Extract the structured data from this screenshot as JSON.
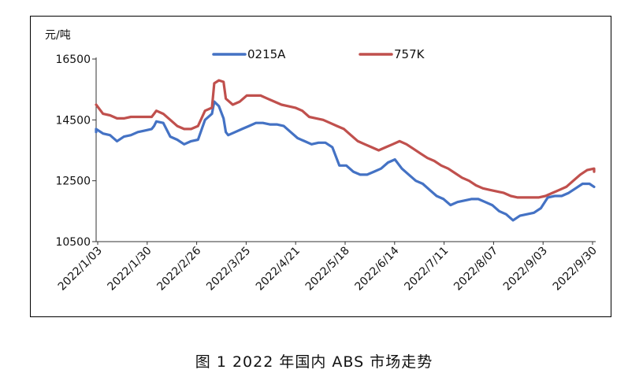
{
  "caption": "图 1  2022 年国内 ABS 市场走势",
  "chart_data": {
    "type": "line",
    "ylabel": "元/吨",
    "ylim": [
      10500,
      16500
    ],
    "yticks": [
      10500,
      12500,
      14500,
      16500
    ],
    "xlabels": [
      "2022/1/03",
      "2022/1/30",
      "2022/2/26",
      "2022/3/25",
      "2022/4/21",
      "2022/5/18",
      "2022/6/14",
      "2022/7/11",
      "2022/8/07",
      "2022/9/03",
      "2022/9/30"
    ],
    "legend_position": "top",
    "grid": false,
    "series": [
      {
        "name": "0215A",
        "color": "#4472C4",
        "points": [
          [
            0,
            14100
          ],
          [
            2,
            14200
          ],
          [
            5,
            14050
          ],
          [
            8,
            14000
          ],
          [
            11,
            13800
          ],
          [
            14,
            13950
          ],
          [
            17,
            14000
          ],
          [
            20,
            14100
          ],
          [
            23,
            14150
          ],
          [
            26,
            14200
          ],
          [
            27,
            14300
          ],
          [
            28,
            14450
          ],
          [
            31,
            14400
          ],
          [
            34,
            13950
          ],
          [
            37,
            13850
          ],
          [
            40,
            13700
          ],
          [
            43,
            13800
          ],
          [
            46,
            13850
          ],
          [
            49,
            14500
          ],
          [
            52,
            14700
          ],
          [
            53,
            15100
          ],
          [
            55,
            14950
          ],
          [
            57,
            14550
          ],
          [
            58,
            14100
          ],
          [
            59,
            14000
          ],
          [
            62,
            14100
          ],
          [
            65,
            14200
          ],
          [
            68,
            14300
          ],
          [
            71,
            14400
          ],
          [
            74,
            14400
          ],
          [
            77,
            14350
          ],
          [
            80,
            14350
          ],
          [
            83,
            14300
          ],
          [
            86,
            14100
          ],
          [
            89,
            13900
          ],
          [
            92,
            13800
          ],
          [
            95,
            13700
          ],
          [
            98,
            13750
          ],
          [
            101,
            13750
          ],
          [
            104,
            13600
          ],
          [
            107,
            13000
          ],
          [
            110,
            13000
          ],
          [
            113,
            12800
          ],
          [
            116,
            12700
          ],
          [
            119,
            12700
          ],
          [
            122,
            12800
          ],
          [
            125,
            12900
          ],
          [
            128,
            13100
          ],
          [
            131,
            13200
          ],
          [
            134,
            12900
          ],
          [
            137,
            12700
          ],
          [
            140,
            12500
          ],
          [
            143,
            12400
          ],
          [
            146,
            12200
          ],
          [
            149,
            12000
          ],
          [
            152,
            11900
          ],
          [
            155,
            11700
          ],
          [
            158,
            11800
          ],
          [
            161,
            11850
          ],
          [
            164,
            11900
          ],
          [
            167,
            11900
          ],
          [
            170,
            11800
          ],
          [
            173,
            11700
          ],
          [
            176,
            11500
          ],
          [
            179,
            11400
          ],
          [
            182,
            11200
          ],
          [
            185,
            11350
          ],
          [
            188,
            11400
          ],
          [
            191,
            11450
          ],
          [
            194,
            11600
          ],
          [
            197,
            11950
          ],
          [
            200,
            12000
          ],
          [
            203,
            12000
          ],
          [
            206,
            12100
          ],
          [
            209,
            12250
          ],
          [
            212,
            12400
          ],
          [
            215,
            12400
          ],
          [
            218,
            12300
          ]
        ]
      },
      {
        "name": "757K",
        "color": "#C0504D",
        "points": [
          [
            0,
            15000
          ],
          [
            2,
            15000
          ],
          [
            5,
            14700
          ],
          [
            8,
            14650
          ],
          [
            11,
            14550
          ],
          [
            14,
            14550
          ],
          [
            17,
            14600
          ],
          [
            20,
            14600
          ],
          [
            23,
            14600
          ],
          [
            26,
            14600
          ],
          [
            27,
            14700
          ],
          [
            28,
            14800
          ],
          [
            31,
            14700
          ],
          [
            34,
            14500
          ],
          [
            37,
            14300
          ],
          [
            40,
            14200
          ],
          [
            43,
            14200
          ],
          [
            46,
            14300
          ],
          [
            49,
            14800
          ],
          [
            52,
            14900
          ],
          [
            53,
            15700
          ],
          [
            55,
            15800
          ],
          [
            57,
            15750
          ],
          [
            58,
            15200
          ],
          [
            61,
            15000
          ],
          [
            64,
            15100
          ],
          [
            67,
            15300
          ],
          [
            70,
            15300
          ],
          [
            73,
            15300
          ],
          [
            76,
            15200
          ],
          [
            79,
            15100
          ],
          [
            82,
            15000
          ],
          [
            85,
            14950
          ],
          [
            88,
            14900
          ],
          [
            91,
            14800
          ],
          [
            94,
            14600
          ],
          [
            97,
            14550
          ],
          [
            100,
            14500
          ],
          [
            103,
            14400
          ],
          [
            106,
            14300
          ],
          [
            109,
            14200
          ],
          [
            112,
            14000
          ],
          [
            115,
            13800
          ],
          [
            118,
            13700
          ],
          [
            121,
            13600
          ],
          [
            124,
            13500
          ],
          [
            127,
            13600
          ],
          [
            130,
            13700
          ],
          [
            133,
            13800
          ],
          [
            136,
            13700
          ],
          [
            139,
            13550
          ],
          [
            142,
            13400
          ],
          [
            145,
            13250
          ],
          [
            148,
            13150
          ],
          [
            151,
            13000
          ],
          [
            154,
            12900
          ],
          [
            157,
            12750
          ],
          [
            160,
            12600
          ],
          [
            163,
            12500
          ],
          [
            166,
            12350
          ],
          [
            169,
            12250
          ],
          [
            172,
            12200
          ],
          [
            175,
            12150
          ],
          [
            178,
            12100
          ],
          [
            181,
            12000
          ],
          [
            184,
            11950
          ],
          [
            187,
            11950
          ],
          [
            190,
            11950
          ],
          [
            193,
            11950
          ],
          [
            196,
            12000
          ],
          [
            199,
            12100
          ],
          [
            202,
            12200
          ],
          [
            205,
            12300
          ],
          [
            208,
            12500
          ],
          [
            211,
            12700
          ],
          [
            214,
            12850
          ],
          [
            217,
            12900
          ],
          [
            218,
            12800
          ]
        ]
      }
    ]
  }
}
